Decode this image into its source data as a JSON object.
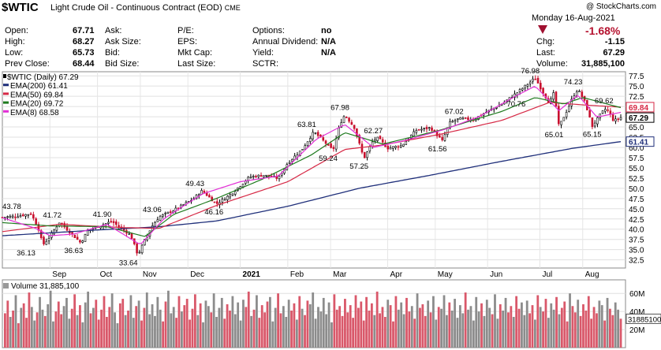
{
  "header": {
    "symbol": "$WTIC",
    "description": "Light Crude Oil - Continuous Contract (EOD)",
    "exchange": "CME",
    "copyright": "@ StockCharts.com",
    "date": "Monday  16-Aug-2021"
  },
  "quote": {
    "col1": [
      {
        "label": "Open:",
        "value": "67.71"
      },
      {
        "label": "High:",
        "value": "68.27"
      },
      {
        "label": "Low:",
        "value": "65.73"
      },
      {
        "label": "Prev Close:",
        "value": "68.44"
      }
    ],
    "col2": [
      {
        "label": "Ask:",
        "value": ""
      },
      {
        "label": "Ask Size:",
        "value": ""
      },
      {
        "label": "Bid:",
        "value": ""
      },
      {
        "label": "Bid Size:",
        "value": ""
      }
    ],
    "col3": [
      {
        "label": "P/E:",
        "value": ""
      },
      {
        "label": "EPS:",
        "value": ""
      },
      {
        "label": "Mkt Cap:",
        "value": ""
      },
      {
        "label": "Last Size:",
        "value": ""
      }
    ],
    "col4": [
      {
        "label": "Options:",
        "value": "no"
      },
      {
        "label": "Annual Dividend:",
        "value": "N/A"
      },
      {
        "label": "Yield:",
        "value": "N/A"
      },
      {
        "label": "SCTR:",
        "value": ""
      }
    ],
    "change_pct": "-1.68%",
    "col5": [
      {
        "label": "Chg:",
        "value": "-1.15"
      },
      {
        "label": "Last:",
        "value": "67.29"
      },
      {
        "label": "Volume:",
        "value": "31,885,100"
      }
    ]
  },
  "colors": {
    "up": "#000000",
    "down": "#c8102e",
    "ema200": "#1f2f7a",
    "ema50": "#d62845",
    "ema20": "#1e7a1e",
    "ema8": "#e22fd6",
    "vol_up": "#8c8c8c",
    "vol_down": "#d9586a"
  },
  "chart_data": {
    "type": "line",
    "legend": [
      {
        "text": "$WTIC (Daily) 67.29",
        "color": "#000000"
      },
      {
        "text": "EMA(200) 61.41",
        "color": "#1f2f7a"
      },
      {
        "text": "EMA(50) 69.84",
        "color": "#d62845"
      },
      {
        "text": "EMA(20) 69.72",
        "color": "#1e7a1e"
      },
      {
        "text": "EMA(8) 68.58",
        "color": "#e22fd6"
      }
    ],
    "y_ticks": [
      "77.5",
      "75.0",
      "72.5",
      "70.0",
      "67.5",
      "65.0",
      "62.5",
      "60.0",
      "57.5",
      "55.0",
      "52.5",
      "50.0",
      "47.5",
      "45.0",
      "42.5",
      "40.0",
      "37.5",
      "35.0",
      "32.5"
    ],
    "y_range": [
      30.5,
      78.5
    ],
    "x_labels": [
      {
        "text": "Sep",
        "t": 0.1
      },
      {
        "text": "Oct",
        "t": 0.2
      },
      {
        "text": "Nov",
        "t": 0.29
      },
      {
        "text": "Dec",
        "t": 0.39
      },
      {
        "text": "2021",
        "t": 0.5
      },
      {
        "text": "Feb",
        "t": 0.6
      },
      {
        "text": "Mar",
        "t": 0.69
      },
      {
        "text": "Apr",
        "t": 0.81
      },
      {
        "text": "May",
        "t": 0.91
      },
      {
        "text": "Jun",
        "t": 1.02
      },
      {
        "text": "Jul",
        "t": 1.13
      },
      {
        "text": "Aug",
        "t": 1.22
      }
    ],
    "price_path": [
      [
        0.0,
        42.9
      ],
      [
        0.03,
        43.2
      ],
      [
        0.06,
        43.78
      ],
      [
        0.075,
        40.5
      ],
      [
        0.085,
        36.13
      ],
      [
        0.1,
        38.2
      ],
      [
        0.12,
        41.72
      ],
      [
        0.14,
        39.5
      ],
      [
        0.165,
        36.63
      ],
      [
        0.18,
        39.8
      ],
      [
        0.2,
        40.6
      ],
      [
        0.23,
        41.9
      ],
      [
        0.25,
        40.2
      ],
      [
        0.27,
        38.5
      ],
      [
        0.285,
        33.64
      ],
      [
        0.3,
        37.5
      ],
      [
        0.315,
        40.8
      ],
      [
        0.33,
        43.06
      ],
      [
        0.36,
        44.6
      ],
      [
        0.4,
        47.3
      ],
      [
        0.42,
        49.43
      ],
      [
        0.45,
        46.16
      ],
      [
        0.48,
        48.5
      ],
      [
        0.52,
        52.8
      ],
      [
        0.55,
        53.2
      ],
      [
        0.58,
        52.4
      ],
      [
        0.6,
        56.2
      ],
      [
        0.63,
        59.5
      ],
      [
        0.655,
        63.81
      ],
      [
        0.68,
        61.0
      ],
      [
        0.695,
        59.24
      ],
      [
        0.71,
        65.8
      ],
      [
        0.72,
        67.98
      ],
      [
        0.74,
        64.8
      ],
      [
        0.76,
        57.25
      ],
      [
        0.78,
        61.8
      ],
      [
        0.79,
        62.27
      ],
      [
        0.81,
        59.8
      ],
      [
        0.84,
        60.5
      ],
      [
        0.87,
        64.2
      ],
      [
        0.9,
        64.8
      ],
      [
        0.925,
        61.56
      ],
      [
        0.94,
        66.0
      ],
      [
        0.96,
        67.02
      ],
      [
        0.99,
        66.8
      ],
      [
        1.02,
        68.8
      ],
      [
        1.05,
        70.6
      ],
      [
        1.08,
        73.2
      ],
      [
        1.12,
        76.98
      ],
      [
        1.135,
        73.8
      ],
      [
        1.15,
        70.76
      ],
      [
        1.16,
        73.5
      ],
      [
        1.17,
        65.01
      ],
      [
        1.19,
        69.8
      ],
      [
        1.2,
        72.5
      ],
      [
        1.21,
        74.23
      ],
      [
        1.225,
        71.0
      ],
      [
        1.24,
        65.15
      ],
      [
        1.26,
        68.5
      ],
      [
        1.27,
        69.62
      ],
      [
        1.285,
        66.5
      ],
      [
        1.3,
        67.29
      ]
    ],
    "ema200_path": [
      [
        0.0,
        38.4
      ],
      [
        0.2,
        39.8
      ],
      [
        0.33,
        40.6
      ],
      [
        0.45,
        42.0
      ],
      [
        0.6,
        45.6
      ],
      [
        0.75,
        50.0
      ],
      [
        0.9,
        53.2
      ],
      [
        1.05,
        56.6
      ],
      [
        1.2,
        59.8
      ],
      [
        1.3,
        61.41
      ]
    ],
    "ema50_path": [
      [
        0.0,
        39.4
      ],
      [
        0.12,
        41.2
      ],
      [
        0.25,
        40.4
      ],
      [
        0.33,
        40.2
      ],
      [
        0.45,
        45.8
      ],
      [
        0.6,
        51.6
      ],
      [
        0.72,
        59.5
      ],
      [
        0.8,
        60.6
      ],
      [
        0.92,
        63.2
      ],
      [
        1.05,
        66.6
      ],
      [
        1.15,
        71.0
      ],
      [
        1.22,
        70.4
      ],
      [
        1.3,
        69.84
      ]
    ],
    "ema20_path": [
      [
        0.0,
        41.6
      ],
      [
        0.1,
        40.8
      ],
      [
        0.22,
        40.6
      ],
      [
        0.3,
        38.2
      ],
      [
        0.36,
        43.6
      ],
      [
        0.45,
        47.5
      ],
      [
        0.55,
        52.4
      ],
      [
        0.65,
        58.2
      ],
      [
        0.72,
        63.6
      ],
      [
        0.8,
        60.8
      ],
      [
        0.92,
        64.2
      ],
      [
        1.05,
        68.8
      ],
      [
        1.12,
        72.2
      ],
      [
        1.18,
        70.6
      ],
      [
        1.22,
        72.2
      ],
      [
        1.3,
        69.72
      ]
    ],
    "ema8_path": [
      [
        0.0,
        42.8
      ],
      [
        0.07,
        40.2
      ],
      [
        0.1,
        38.4
      ],
      [
        0.15,
        38.8
      ],
      [
        0.22,
        41.2
      ],
      [
        0.29,
        36.2
      ],
      [
        0.34,
        42.6
      ],
      [
        0.42,
        48.6
      ],
      [
        0.5,
        51.6
      ],
      [
        0.58,
        53.0
      ],
      [
        0.66,
        62.0
      ],
      [
        0.72,
        65.6
      ],
      [
        0.78,
        60.0
      ],
      [
        0.85,
        61.8
      ],
      [
        0.93,
        64.4
      ],
      [
        1.0,
        67.4
      ],
      [
        1.08,
        72.6
      ],
      [
        1.12,
        75.0
      ],
      [
        1.17,
        69.0
      ],
      [
        1.21,
        72.8
      ],
      [
        1.25,
        67.4
      ],
      [
        1.3,
        68.58
      ]
    ],
    "annotations": [
      {
        "text": "43.78",
        "t": 0.02,
        "v": 43.78,
        "pos": "above"
      },
      {
        "text": "36.13",
        "t": 0.05,
        "v": 36.13,
        "pos": "below"
      },
      {
        "text": "41.72",
        "t": 0.105,
        "v": 41.72,
        "pos": "above"
      },
      {
        "text": "36.63",
        "t": 0.15,
        "v": 36.63,
        "pos": "below"
      },
      {
        "text": "41.90",
        "t": 0.21,
        "v": 41.9,
        "pos": "above"
      },
      {
        "text": "33.64",
        "t": 0.265,
        "v": 33.64,
        "pos": "below"
      },
      {
        "text": "43.06",
        "t": 0.315,
        "v": 43.06,
        "pos": "above"
      },
      {
        "text": "49.43",
        "t": 0.405,
        "v": 49.43,
        "pos": "above"
      },
      {
        "text": "46.16",
        "t": 0.445,
        "v": 46.16,
        "pos": "below"
      },
      {
        "text": "63.81",
        "t": 0.64,
        "v": 63.81,
        "pos": "above"
      },
      {
        "text": "59.24",
        "t": 0.685,
        "v": 59.24,
        "pos": "below"
      },
      {
        "text": "67.98",
        "t": 0.71,
        "v": 67.98,
        "pos": "above"
      },
      {
        "text": "57.25",
        "t": 0.75,
        "v": 57.25,
        "pos": "below"
      },
      {
        "text": "62.27",
        "t": 0.78,
        "v": 62.27,
        "pos": "above"
      },
      {
        "text": "61.56",
        "t": 0.915,
        "v": 61.56,
        "pos": "below"
      },
      {
        "text": "67.02",
        "t": 0.95,
        "v": 67.02,
        "pos": "above"
      },
      {
        "text": "76.98",
        "t": 1.11,
        "v": 76.98,
        "pos": "above"
      },
      {
        "text": "70.76",
        "t": 1.13,
        "v": 70.76,
        "pos": "left"
      },
      {
        "text": "65.01",
        "t": 1.16,
        "v": 65.01,
        "pos": "below"
      },
      {
        "text": "74.23",
        "t": 1.2,
        "v": 74.23,
        "pos": "above"
      },
      {
        "text": "65.15",
        "t": 1.24,
        "v": 65.15,
        "pos": "below"
      },
      {
        "text": "69.62",
        "t": 1.265,
        "v": 69.62,
        "pos": "above"
      }
    ],
    "price_tags": [
      {
        "text": "69.84",
        "v": 69.84,
        "color": "#d62845",
        "fill": "#ffffff"
      },
      {
        "text": "67.29",
        "v": 67.29,
        "color": "#000000",
        "fill": "#ffffff"
      },
      {
        "text": "61.41",
        "v": 61.41,
        "color": "#1f2f7a",
        "fill": "#ffffff"
      }
    ],
    "volume": {
      "label": "Volume 31,885,100",
      "y_ticks": [
        "60M",
        "40M",
        "20M"
      ],
      "y_range": [
        0,
        75
      ],
      "last_tag": "31885100",
      "last_value": 31.9,
      "values": [
        38,
        52,
        34,
        41,
        58,
        27,
        44,
        49,
        33,
        61,
        45,
        30,
        39,
        56,
        42,
        35,
        48,
        63,
        29,
        40,
        51,
        37,
        46,
        55,
        32,
        43,
        59,
        36,
        47,
        28,
        50,
        62,
        38,
        44,
        53,
        31,
        42,
        57,
        34,
        45,
        60,
        39,
        27,
        49,
        54,
        36,
        41,
        58,
        33,
        46,
        52,
        30,
        44,
        61,
        37,
        48,
        35,
        56,
        42,
        29,
        51,
        63,
        38,
        45,
        33,
        57,
        40,
        47,
        54,
        31,
        43,
        59,
        36,
        49,
        28,
        52,
        46,
        39,
        60,
        34,
        44,
        55,
        32,
        48,
        41,
        57,
        37,
        50,
        30,
        53,
        45,
        62,
        35,
        42,
        58,
        33,
        47,
        39,
        51,
        56,
        29,
        44,
        60,
        38,
        46,
        34,
        53,
        41,
        49,
        31,
        57,
        43,
        36,
        52,
        48,
        61,
        32,
        45,
        40,
        55,
        37,
        50,
        28,
        59,
        42,
        46,
        35,
        54,
        39,
        47,
        33,
        58,
        44,
        51,
        30,
        56,
        41,
        49,
        36,
        62,
        38,
        45,
        34,
        53,
        47,
        29,
        57,
        42,
        50,
        37,
        55,
        40,
        46,
        32,
        60,
        44,
        48,
        35,
        52,
        39,
        57,
        31,
        45,
        43,
        58,
        36,
        50,
        41,
        54,
        33,
        47,
        38,
        61,
        42,
        46,
        30,
        56,
        40,
        49,
        35,
        53,
        44,
        37,
        59,
        32,
        48,
        41,
        55,
        39,
        46,
        34,
        57,
        43,
        50,
        36,
        52,
        38,
        47,
        31,
        58,
        45,
        40,
        54,
        33,
        49,
        42,
        56,
        37,
        44,
        51,
        29,
        60,
        46,
        39,
        53,
        35,
        48,
        41,
        57,
        32,
        45,
        38,
        52,
        47,
        30,
        55,
        43,
        36,
        50,
        42,
        32
      ]
    }
  }
}
